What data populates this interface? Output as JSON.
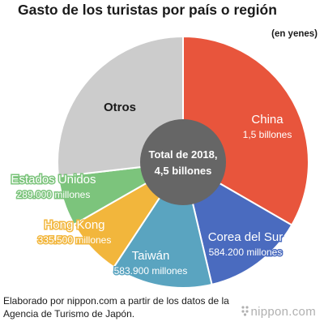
{
  "title": "Gasto de los turistas por país o región",
  "unit": "(en yenes)",
  "source": "Elaborado por nippon.com a partir de los datos de la Agencia de Turismo de Japón.",
  "logo": "nippon.com",
  "chart_data": {
    "type": "pie",
    "title": "Gasto de los turistas por país o región",
    "center_label": [
      "Total de 2018,",
      "4,5 billones"
    ],
    "total": 4500000,
    "slices": [
      {
        "category": "China",
        "value_label": "1,5 billones",
        "value": 1500000,
        "color": "#e8553c"
      },
      {
        "category": "Corea del Sur",
        "value_label": "584.200 millones",
        "value": 584200,
        "color": "#4a6bbf"
      },
      {
        "category": "Taiwán",
        "value_label": "583.900 millones",
        "value": 583900,
        "color": "#5aa4c0"
      },
      {
        "category": "Hong Kong",
        "value_label": "335.500 millones",
        "value": 335500,
        "color": "#f2b63c"
      },
      {
        "category": "Estados Unidos",
        "value_label": "289.000 millones",
        "value": 289000,
        "color": "#7cc47c"
      },
      {
        "category": "Otros",
        "value_label": "",
        "value": 1207400,
        "color": "#cccccc"
      }
    ]
  }
}
